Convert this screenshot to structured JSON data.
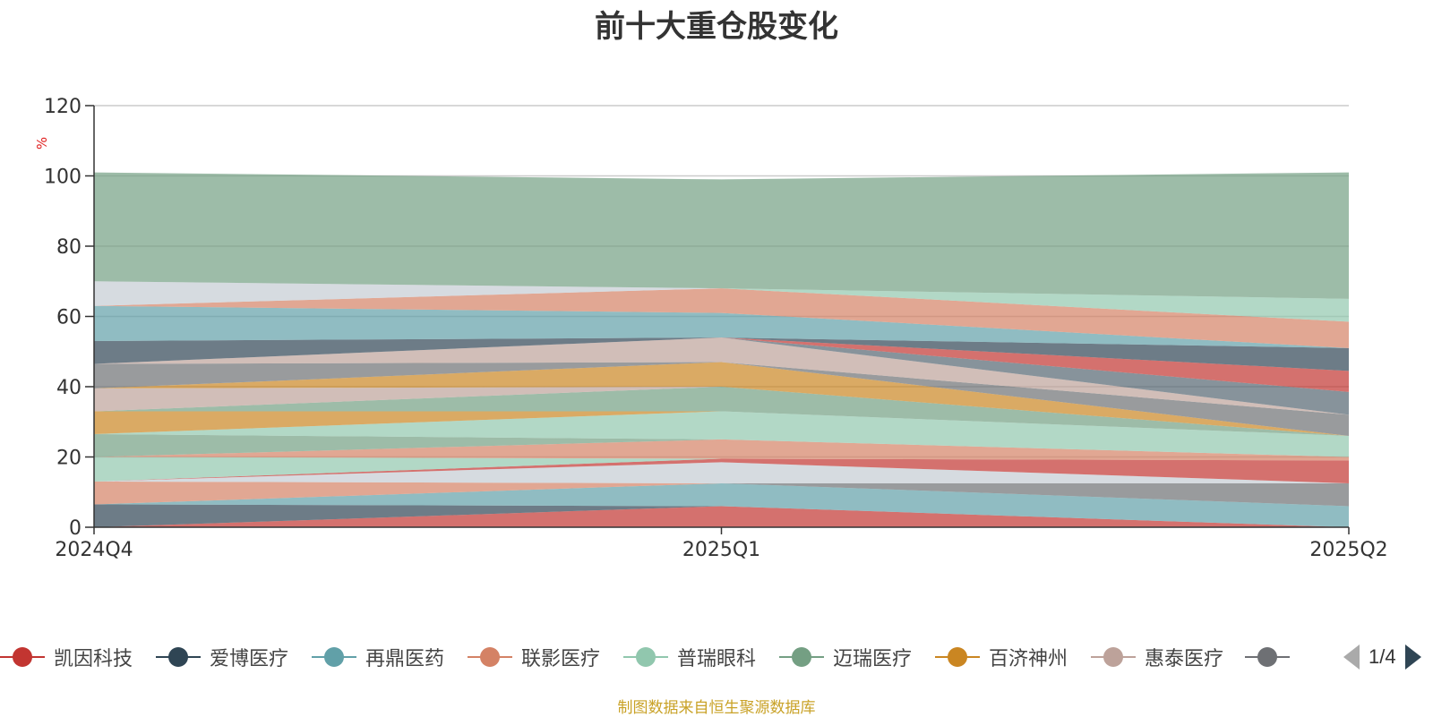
{
  "title": "前十大重仓股变化",
  "source_note": "制图数据来自恒生聚源数据库",
  "legend_page": "1/4",
  "legend": [
    {
      "name": "凯因科技",
      "color": "#c23531"
    },
    {
      "name": "爱博医疗",
      "color": "#2f4554"
    },
    {
      "name": "再鼎医药",
      "color": "#61a0a8"
    },
    {
      "name": "联影医疗",
      "color": "#d48265"
    },
    {
      "name": "普瑞眼科",
      "color": "#91c7ae"
    },
    {
      "name": "迈瑞医疗",
      "color": "#749f83"
    },
    {
      "name": "百济神州",
      "color": "#ca8622"
    },
    {
      "name": "惠泰医疗",
      "color": "#bda29a"
    },
    {
      "name": "",
      "color": "#6e7074"
    }
  ],
  "chart_data": {
    "type": "area",
    "stacked": true,
    "title": "前十大重仓股变化",
    "ylabel": "%",
    "categories": [
      "2024Q4",
      "2025Q1",
      "2025Q2"
    ],
    "ylim": [
      0,
      120
    ],
    "yticks": [
      0,
      20,
      40,
      60,
      80,
      100,
      120
    ],
    "grid": true,
    "opacity": 0.7,
    "series": [
      {
        "name": "凯因科技",
        "color": "#c23531",
        "values": [
          0,
          6,
          0
        ]
      },
      {
        "name": "",
        "color": "#2f4554",
        "values": [
          6.5,
          0,
          0
        ]
      },
      {
        "name": "",
        "color": "#61a0a8",
        "values": [
          0,
          6.5,
          6
        ]
      },
      {
        "name": "",
        "color": "#6e7074",
        "values": [
          0,
          0,
          6.5
        ]
      },
      {
        "name": "",
        "color": "#d48265",
        "values": [
          6.5,
          0,
          0
        ]
      },
      {
        "name": "",
        "color": "#c4ccd3",
        "values": [
          0,
          6,
          0
        ]
      },
      {
        "name": "",
        "color": "#c23531",
        "values": [
          0,
          1,
          6.5
        ]
      },
      {
        "name": "",
        "color": "#91c7ae",
        "values": [
          7,
          0,
          0
        ]
      },
      {
        "name": "",
        "color": "#d48265",
        "values": [
          0,
          5.5,
          1
        ]
      },
      {
        "name": "",
        "color": "#749f83",
        "values": [
          6.5,
          0,
          0
        ]
      },
      {
        "name": "",
        "color": "#91c7ae",
        "values": [
          0,
          8,
          6
        ]
      },
      {
        "name": "",
        "color": "#ca8622",
        "values": [
          6.5,
          0,
          0
        ]
      },
      {
        "name": "",
        "color": "#749f83",
        "values": [
          0,
          7,
          0
        ]
      },
      {
        "name": "",
        "color": "#bda29a",
        "values": [
          6.5,
          0,
          0
        ]
      },
      {
        "name": "",
        "color": "#ca8622",
        "values": [
          0,
          7,
          0
        ]
      },
      {
        "name": "",
        "color": "#6e7074",
        "values": [
          7,
          0,
          6
        ]
      },
      {
        "name": "",
        "color": "#bda29a",
        "values": [
          0,
          7,
          0
        ]
      },
      {
        "name": "",
        "color": "#546570",
        "values": [
          0,
          0,
          6.5
        ]
      },
      {
        "name": "",
        "color": "#c23531",
        "values": [
          0,
          0,
          6
        ]
      },
      {
        "name": "",
        "color": "#2f4554",
        "values": [
          6.5,
          0,
          6.5
        ]
      },
      {
        "name": "",
        "color": "#61a0a8",
        "values": [
          10,
          7,
          0
        ]
      },
      {
        "name": "",
        "color": "#d48265",
        "values": [
          0,
          7,
          7.5
        ]
      },
      {
        "name": "",
        "color": "#91c7ae",
        "values": [
          0,
          0,
          6.5
        ]
      },
      {
        "name": "",
        "color": "#c4ccd3",
        "values": [
          7,
          0,
          0
        ]
      },
      {
        "name": "迈瑞医疗",
        "color": "#749f83",
        "values": [
          31,
          31,
          36
        ]
      }
    ]
  }
}
